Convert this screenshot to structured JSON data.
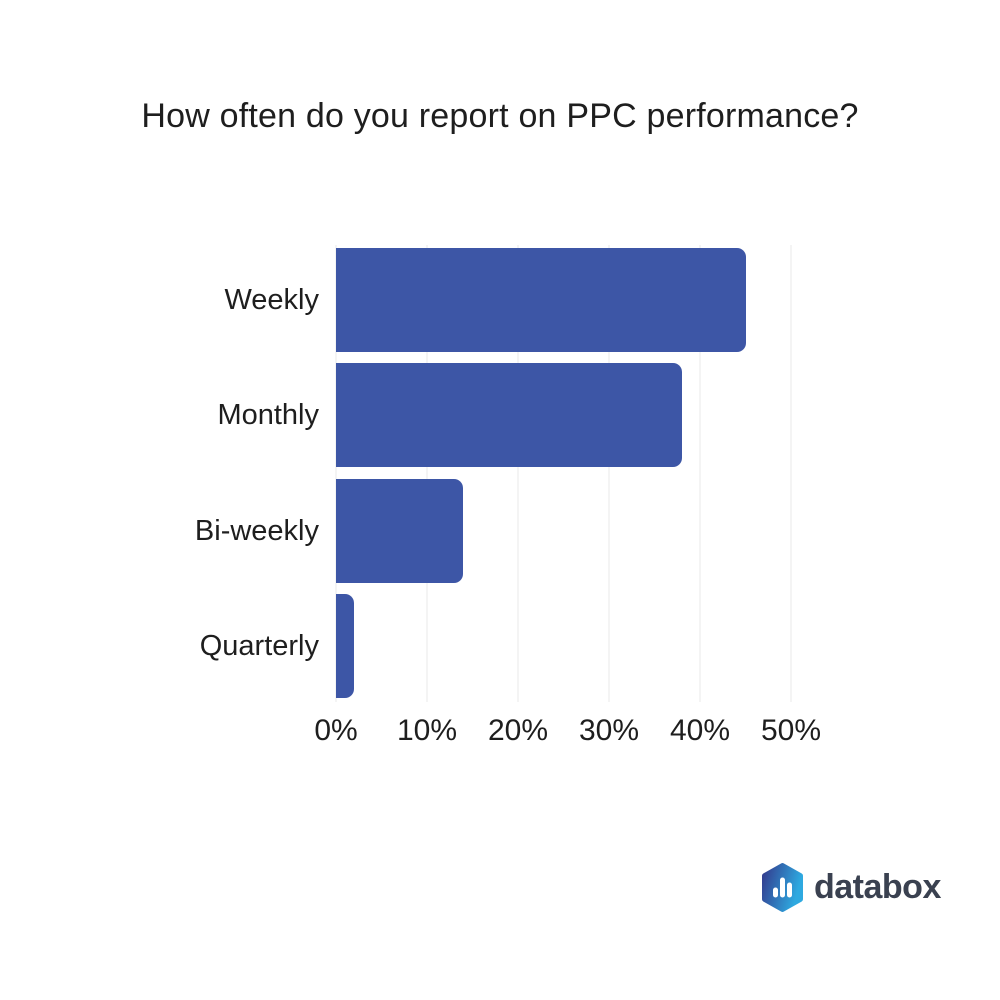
{
  "title": {
    "text": "How often do you report on PPC performance?",
    "color": "#1e1e1e"
  },
  "chart_data": {
    "type": "bar",
    "orientation": "horizontal",
    "title": "How often do you report on PPC performance?",
    "categories": [
      "Weekly",
      "Monthly",
      "Bi-weekly",
      "Quarterly"
    ],
    "values": [
      45,
      38,
      14,
      2
    ],
    "unit": "%",
    "xlabel": "",
    "ylabel": "",
    "xlim": [
      0,
      50
    ],
    "x_ticks": [
      "0%",
      "10%",
      "20%",
      "30%",
      "40%",
      "50%"
    ],
    "grid": true,
    "legend": false,
    "bar_color": "#3D56A6",
    "grid_color": "#E9E9E9",
    "label_color": "#1e1e1e"
  },
  "branding": {
    "logo_text": "databox",
    "logo_text_color": "#3A4150",
    "logo_icon_name": "databox-hexagon-bar-chart-icon",
    "hex_gradient_start": "#333D8F",
    "hex_gradient_end": "#2EA9E0",
    "hex_bars_color": "#ffffff"
  }
}
